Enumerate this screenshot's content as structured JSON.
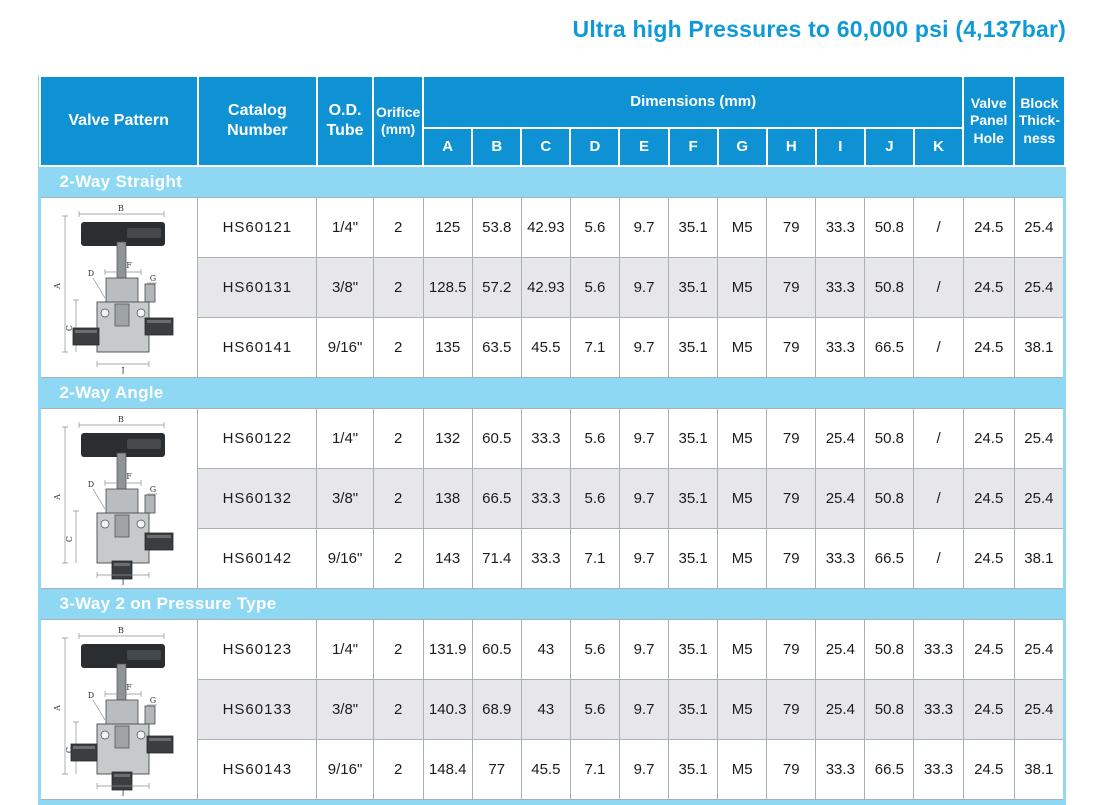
{
  "title": "Ultra high Pressures to 60,000 psi (4,137bar)",
  "colors": {
    "header_blue": "#0f92d4",
    "band_blue": "#8ed8f3",
    "title_blue": "#0e9ad9",
    "alt_row_gray": "#e7e7e9",
    "cell_border": "#a8b0b8"
  },
  "table": {
    "headers": {
      "valve_pattern": "Valve Pattern",
      "catalog_number": "Catalog\nNumber",
      "od_tube": "O.D.\nTube",
      "orifice": "Orifice\n(mm)",
      "dimensions": "Dimensions (mm)",
      "dimension_letters": [
        "A",
        "B",
        "C",
        "D",
        "E",
        "F",
        "G",
        "H",
        "I",
        "J",
        "K"
      ],
      "valve_panel_hole": "Valve\nPanel\nHole",
      "block_thickness": "Block\nThick-\nness"
    },
    "diagram_labels": {
      "top": "B",
      "height": "A",
      "body_left": "C",
      "leader": "D",
      "bonnet": "F",
      "gland": "G",
      "bottom": "J"
    },
    "sections": [
      {
        "name": "2-Way Straight",
        "diagram": "2-way-straight",
        "rows": [
          {
            "catalog": "HS60121",
            "od_tube": "1/4\"",
            "orifice": "2",
            "dims": [
              "125",
              "53.8",
              "42.93",
              "5.6",
              "9.7",
              "35.1",
              "M5",
              "79",
              "33.3",
              "50.8",
              "/"
            ],
            "valve_panel_hole": "24.5",
            "block_thickness": "25.4"
          },
          {
            "catalog": "HS60131",
            "od_tube": "3/8\"",
            "orifice": "2",
            "dims": [
              "128.5",
              "57.2",
              "42.93",
              "5.6",
              "9.7",
              "35.1",
              "M5",
              "79",
              "33.3",
              "50.8",
              "/"
            ],
            "valve_panel_hole": "24.5",
            "block_thickness": "25.4"
          },
          {
            "catalog": "HS60141",
            "od_tube": "9/16\"",
            "orifice": "2",
            "dims": [
              "135",
              "63.5",
              "45.5",
              "7.1",
              "9.7",
              "35.1",
              "M5",
              "79",
              "33.3",
              "66.5",
              "/"
            ],
            "valve_panel_hole": "24.5",
            "block_thickness": "38.1"
          }
        ]
      },
      {
        "name": "2-Way Angle",
        "diagram": "2-way-angle",
        "rows": [
          {
            "catalog": "HS60122",
            "od_tube": "1/4\"",
            "orifice": "2",
            "dims": [
              "132",
              "60.5",
              "33.3",
              "5.6",
              "9.7",
              "35.1",
              "M5",
              "79",
              "25.4",
              "50.8",
              "/"
            ],
            "valve_panel_hole": "24.5",
            "block_thickness": "25.4"
          },
          {
            "catalog": "HS60132",
            "od_tube": "3/8\"",
            "orifice": "2",
            "dims": [
              "138",
              "66.5",
              "33.3",
              "5.6",
              "9.7",
              "35.1",
              "M5",
              "79",
              "25.4",
              "50.8",
              "/"
            ],
            "valve_panel_hole": "24.5",
            "block_thickness": "25.4"
          },
          {
            "catalog": "HS60142",
            "od_tube": "9/16\"",
            "orifice": "2",
            "dims": [
              "143",
              "71.4",
              "33.3",
              "7.1",
              "9.7",
              "35.1",
              "M5",
              "79",
              "33.3",
              "66.5",
              "/"
            ],
            "valve_panel_hole": "24.5",
            "block_thickness": "38.1"
          }
        ]
      },
      {
        "name": "3-Way 2 on Pressure Type",
        "diagram": "3-way-2-on-pressure",
        "rows": [
          {
            "catalog": "HS60123",
            "od_tube": "1/4\"",
            "orifice": "2",
            "dims": [
              "131.9",
              "60.5",
              "43",
              "5.6",
              "9.7",
              "35.1",
              "M5",
              "79",
              "25.4",
              "50.8",
              "33.3"
            ],
            "valve_panel_hole": "24.5",
            "block_thickness": "25.4"
          },
          {
            "catalog": "HS60133",
            "od_tube": "3/8\"",
            "orifice": "2",
            "dims": [
              "140.3",
              "68.9",
              "43",
              "5.6",
              "9.7",
              "35.1",
              "M5",
              "79",
              "25.4",
              "50.8",
              "33.3"
            ],
            "valve_panel_hole": "24.5",
            "block_thickness": "25.4"
          },
          {
            "catalog": "HS60143",
            "od_tube": "9/16\"",
            "orifice": "2",
            "dims": [
              "148.4",
              "77",
              "45.5",
              "7.1",
              "9.7",
              "35.1",
              "M5",
              "79",
              "33.3",
              "66.5",
              "33.3"
            ],
            "valve_panel_hole": "24.5",
            "block_thickness": "38.1"
          }
        ]
      }
    ]
  }
}
